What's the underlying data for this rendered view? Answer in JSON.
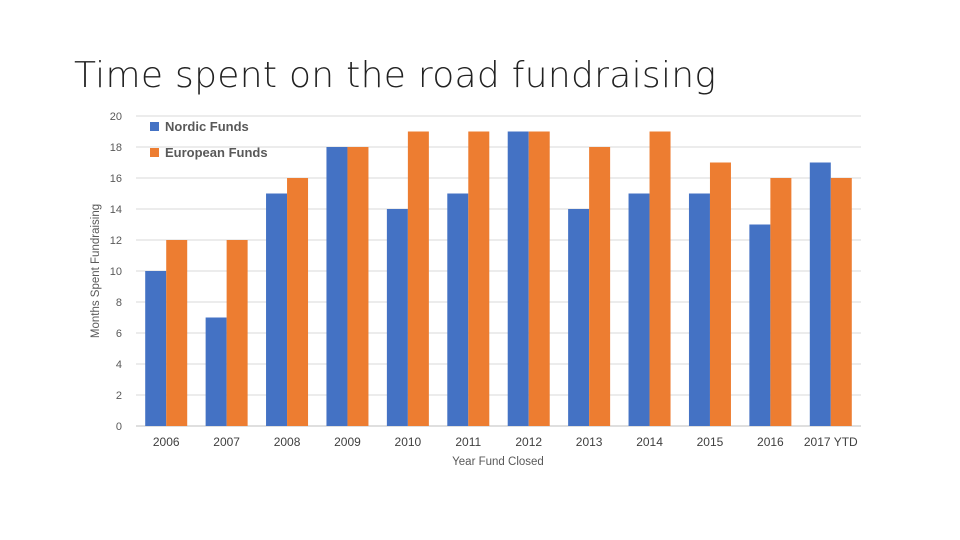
{
  "slide": {
    "title": "Time spent on the road fundraising"
  },
  "chart_data": {
    "type": "bar",
    "title": "",
    "xlabel": "Year Fund Closed",
    "ylabel": "Months Spent Fundraising",
    "ylim": [
      0,
      20
    ],
    "yticks": [
      0,
      2,
      4,
      6,
      8,
      10,
      12,
      14,
      16,
      18,
      20
    ],
    "grid": true,
    "legend_position": "top-left",
    "categories": [
      "2006",
      "2007",
      "2008",
      "2009",
      "2010",
      "2011",
      "2012",
      "2013",
      "2014",
      "2015",
      "2016",
      "2017 YTD"
    ],
    "series": [
      {
        "name": "Nordic Funds",
        "color": "#4472c4",
        "values": [
          10,
          7,
          15,
          18,
          14,
          15,
          19,
          14,
          15,
          15,
          13,
          17
        ]
      },
      {
        "name": "European Funds",
        "color": "#ed7d31",
        "values": [
          12,
          12,
          16,
          18,
          19,
          19,
          19,
          18,
          19,
          17,
          16,
          16
        ]
      }
    ]
  }
}
